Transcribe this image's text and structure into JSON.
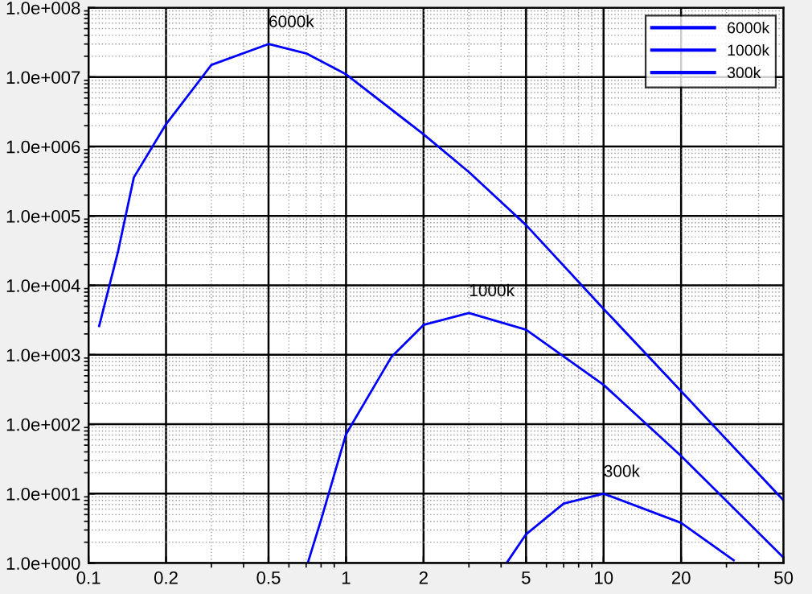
{
  "chart_data": {
    "type": "line",
    "log": "xy",
    "grid": true,
    "legend": "top right",
    "xlim": [
      0.1,
      50
    ],
    "xticks": [
      0.1,
      0.2,
      0.5,
      1,
      2,
      5,
      10,
      20,
      50
    ],
    "ylim": [
      1,
      100000000
    ],
    "yticks": [
      {
        "value": 1,
        "label": "1.0e+000"
      },
      {
        "value": 10,
        "label": "1.0e+001"
      },
      {
        "value": 100,
        "label": "1.0e+002"
      },
      {
        "value": 1000,
        "label": "1.0e+003"
      },
      {
        "value": 10000,
        "label": "1.0e+004"
      },
      {
        "value": 100000,
        "label": "1.0e+005"
      },
      {
        "value": 1000000,
        "label": "1.0e+006"
      },
      {
        "value": 10000000,
        "label": "1.0e+007"
      },
      {
        "value": 100000000,
        "label": "1.0e+008"
      }
    ],
    "series": [
      {
        "name": "6000k",
        "color": "#0000ff",
        "x": [
          0.11,
          0.13,
          0.15,
          0.2,
          0.3,
          0.5,
          0.7,
          1,
          2,
          3,
          5,
          10,
          20,
          50
        ],
        "values": [
          2600,
          30000,
          360000,
          2100000,
          15000000,
          30000000,
          22000000,
          11000000,
          1500000,
          430000,
          74000,
          4600,
          300,
          8
        ]
      },
      {
        "name": "1000k",
        "color": "#0000ff",
        "x": [
          0.71,
          0.8,
          1,
          1.5,
          2,
          3,
          5,
          10,
          20,
          50
        ],
        "values": [
          1,
          4.2,
          72,
          930,
          2700,
          4000,
          2300,
          370,
          35,
          1.2
        ]
      },
      {
        "name": "300k",
        "color": "#0000ff",
        "x": [
          4.2,
          5,
          7,
          10,
          20,
          32
        ],
        "values": [
          1,
          2.6,
          7.2,
          10,
          3.8,
          1.1
        ]
      }
    ]
  }
}
